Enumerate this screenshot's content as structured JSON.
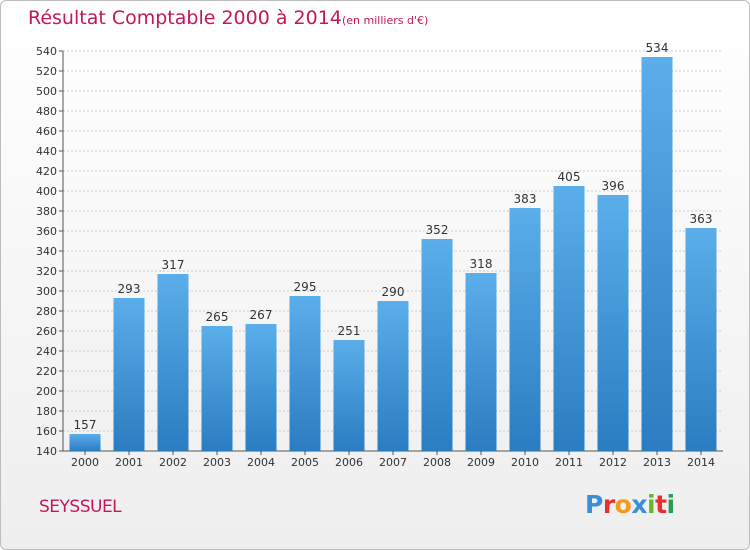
{
  "header": {
    "title": "Résultat Comptable 2000 à 2014",
    "subtitle": "(en milliers d'€)"
  },
  "footer": {
    "city": "SEYSSUEL",
    "logo": "Proxiti"
  },
  "colors": {
    "title": "#c2185b",
    "bar_top": "#5aaeea",
    "bar_bottom": "#2a7dc0",
    "grid": "#cccccc",
    "logo_letters": [
      "#3b8ed8",
      "#e8312f",
      "#f29b1f",
      "#3b8ed8",
      "#6bb52e",
      "#e8312f",
      "#2a9d4e"
    ]
  },
  "chart_data": {
    "type": "bar",
    "title": "Résultat Comptable 2000 à 2014",
    "subtitle": "(en milliers d'€)",
    "categories": [
      "2000",
      "2001",
      "2002",
      "2003",
      "2004",
      "2005",
      "2006",
      "2007",
      "2008",
      "2009",
      "2010",
      "2011",
      "2012",
      "2013",
      "2014"
    ],
    "values": [
      157,
      293,
      317,
      265,
      267,
      295,
      251,
      290,
      352,
      318,
      383,
      405,
      396,
      534,
      363
    ],
    "ylim": [
      140,
      540
    ],
    "yticks": [
      140,
      160,
      180,
      200,
      220,
      240,
      260,
      280,
      300,
      320,
      340,
      360,
      380,
      400,
      420,
      440,
      460,
      480,
      500,
      520,
      540
    ],
    "grid": true,
    "xlabel": "",
    "ylabel": ""
  }
}
